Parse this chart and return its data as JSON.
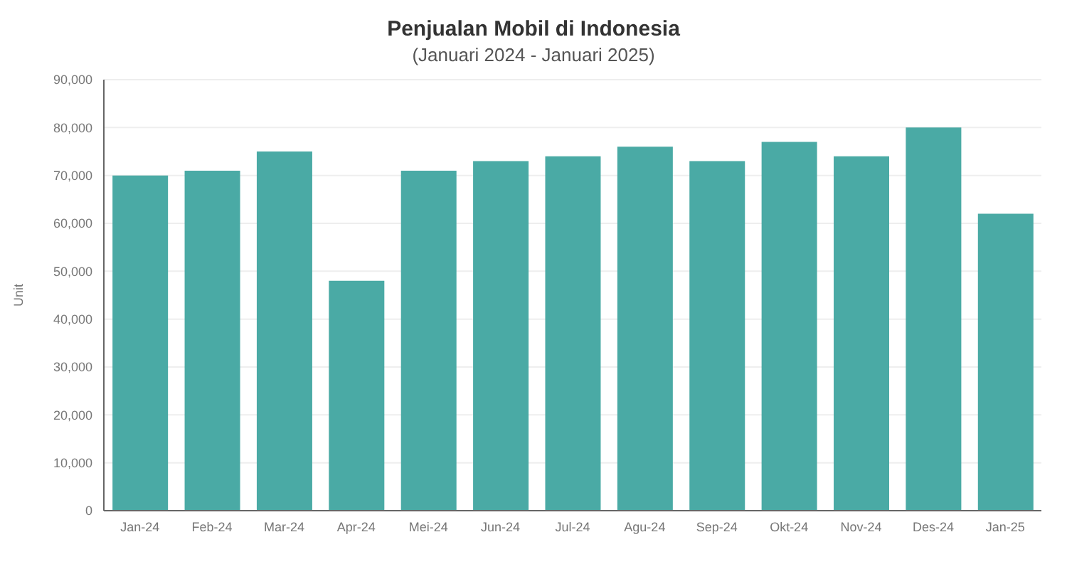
{
  "chart_data": {
    "type": "bar",
    "title": "Penjualan Mobil di Indonesia",
    "subtitle": "(Januari 2024 - Januari 2025)",
    "ylabel": "Unit",
    "categories": [
      "Jan-24",
      "Feb-24",
      "Mar-24",
      "Apr-24",
      "Mei-24",
      "Jun-24",
      "Jul-24",
      "Agu-24",
      "Sep-24",
      "Okt-24",
      "Nov-24",
      "Des-24",
      "Jan-25"
    ],
    "values": [
      70000,
      71000,
      75000,
      48000,
      71000,
      73000,
      74000,
      76000,
      73000,
      77000,
      74000,
      80000,
      62000
    ],
    "color": "#4aaaa5",
    "ylim": [
      0,
      90000
    ],
    "yticks": [
      {
        "value": 0,
        "label": "0"
      },
      {
        "value": 10000,
        "label": "10,000"
      },
      {
        "value": 20000,
        "label": "20,000"
      },
      {
        "value": 30000,
        "label": "30,000"
      },
      {
        "value": 40000,
        "label": "40,000"
      },
      {
        "value": 50000,
        "label": "50,000"
      },
      {
        "value": 60000,
        "label": "60,000"
      },
      {
        "value": 70000,
        "label": "70,000"
      },
      {
        "value": 80000,
        "label": "80,000"
      },
      {
        "value": 90000,
        "label": "90,000"
      }
    ],
    "grid": "y"
  }
}
